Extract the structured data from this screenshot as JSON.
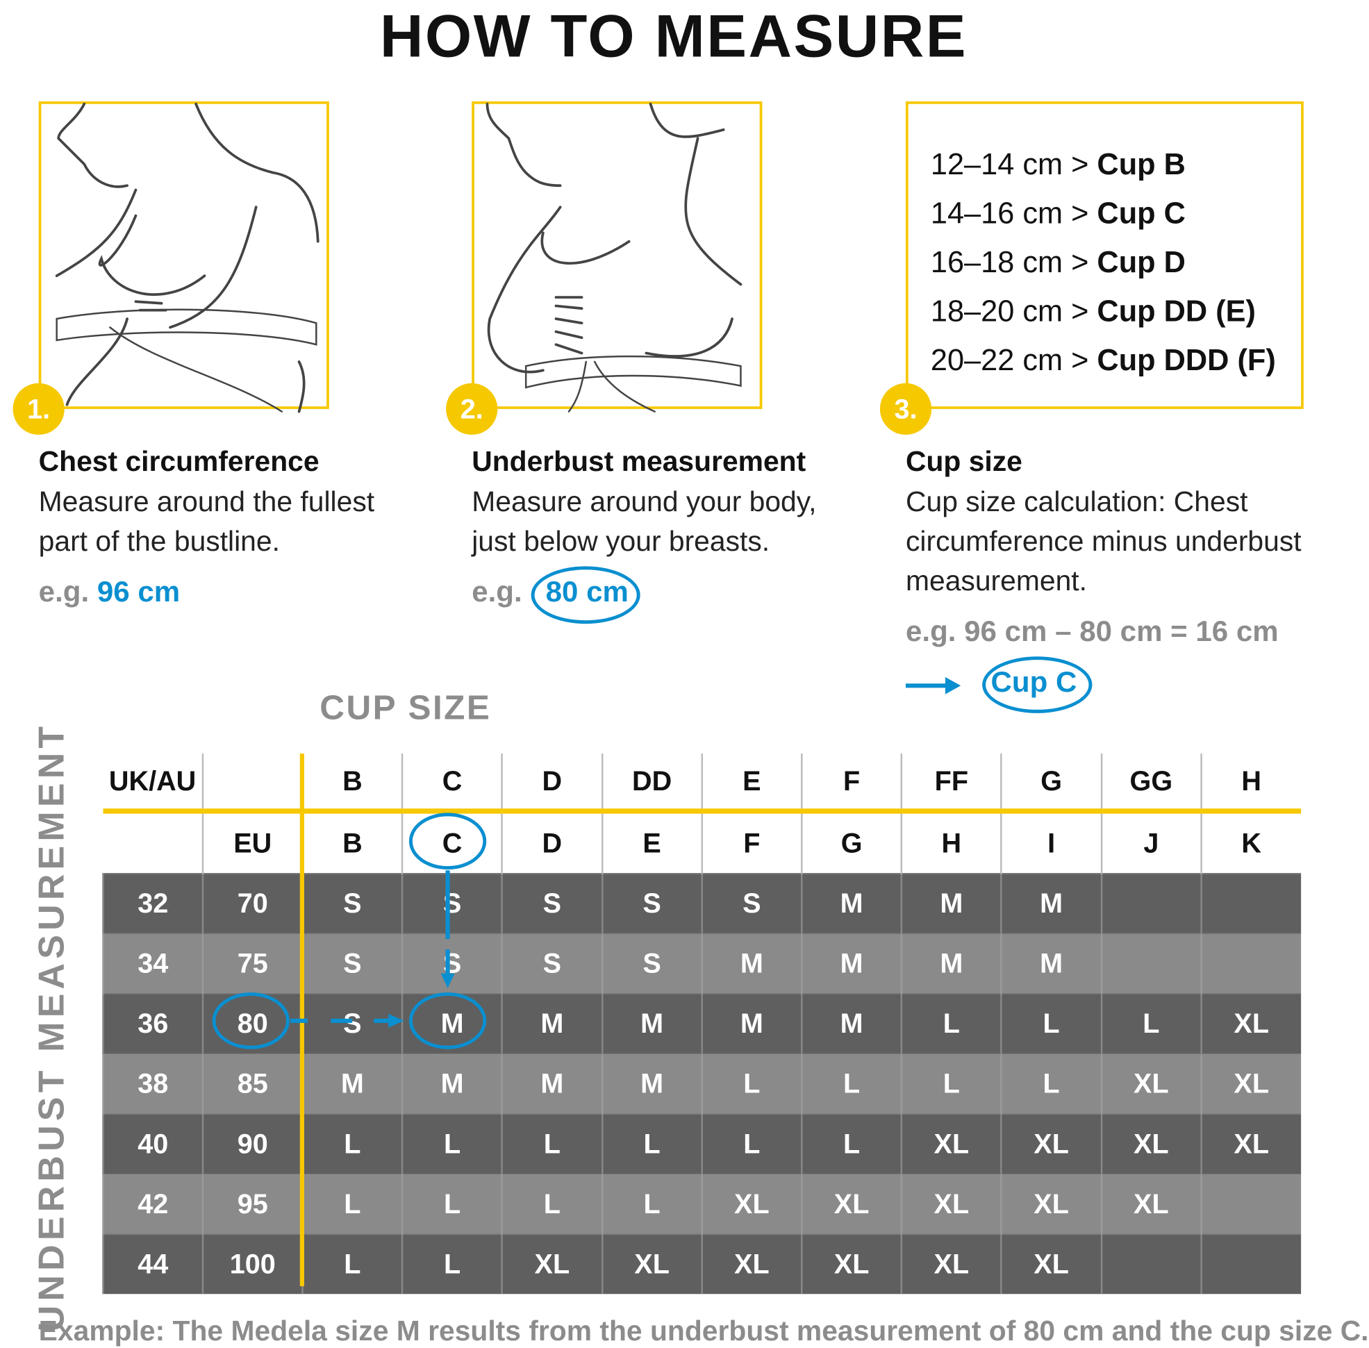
{
  "title": "HOW TO MEASURE",
  "colors": {
    "accent_yellow": "#f6c800",
    "highlight_blue": "#0a8fd0",
    "dark_row": "#5f5f5f",
    "light_row": "#8a8a8a",
    "label_grey": "#8c8c8c"
  },
  "steps": [
    {
      "number": "1.",
      "heading": "Chest circumference",
      "text_line1": "Measure around the fullest",
      "text_line2": "part of the bustline.",
      "eg_label": "e.g.",
      "eg_value": "96 cm"
    },
    {
      "number": "2.",
      "heading": "Underbust measurement",
      "text_line1": "Measure around your body,",
      "text_line2": "just below your breasts.",
      "eg_label": "e.g.",
      "eg_value": "80 cm"
    },
    {
      "number": "3.",
      "heading": "Cup size",
      "text_line1": "Cup size calculation: Chest",
      "text_line2": "circumference minus underbust",
      "text_line3": "measurement.",
      "eg_text": "e.g. 96 cm – 80 cm = 16 cm",
      "result": "Cup C",
      "arrow_icon": "arrow-right-icon"
    }
  ],
  "cup_ranges": [
    {
      "range": "12–14 cm >",
      "cup": "Cup B"
    },
    {
      "range": "14–16 cm >",
      "cup": "Cup C"
    },
    {
      "range": "16–18 cm >",
      "cup": "Cup D"
    },
    {
      "range": "18–20 cm >",
      "cup": "Cup DD (E)"
    },
    {
      "range": "20–22 cm >",
      "cup": "Cup DDD (F)"
    }
  ],
  "table": {
    "cup_size_label": "CUP SIZE",
    "underbust_label": "UNDERBUST MEASUREMENT",
    "header_uk": [
      "UK/AU",
      "",
      "B",
      "C",
      "D",
      "DD",
      "E",
      "F",
      "FF",
      "G",
      "GG",
      "H"
    ],
    "header_eu": [
      "",
      "EU",
      "B",
      "C",
      "D",
      "E",
      "F",
      "G",
      "H",
      "I",
      "J",
      "K"
    ],
    "rows": [
      [
        "32",
        "70",
        "S",
        "S",
        "S",
        "S",
        "S",
        "M",
        "M",
        "M",
        "",
        ""
      ],
      [
        "34",
        "75",
        "S",
        "S",
        "S",
        "S",
        "M",
        "M",
        "M",
        "M",
        "",
        ""
      ],
      [
        "36",
        "80",
        "S",
        "M",
        "M",
        "M",
        "M",
        "M",
        "L",
        "L",
        "L",
        "XL"
      ],
      [
        "38",
        "85",
        "M",
        "M",
        "M",
        "M",
        "L",
        "L",
        "L",
        "L",
        "XL",
        "XL"
      ],
      [
        "40",
        "90",
        "L",
        "L",
        "L",
        "L",
        "L",
        "L",
        "XL",
        "XL",
        "XL",
        "XL"
      ],
      [
        "42",
        "95",
        "L",
        "L",
        "L",
        "L",
        "XL",
        "XL",
        "XL",
        "XL",
        "XL",
        ""
      ],
      [
        "44",
        "100",
        "L",
        "L",
        "XL",
        "XL",
        "XL",
        "XL",
        "XL",
        "XL",
        "",
        ""
      ]
    ],
    "highlight": {
      "eu_underbust": "80",
      "eu_cup": "C",
      "result_size": "M"
    }
  },
  "footer": "Example: The Medela size M results from the underbust measurement of 80 cm and the cup size C."
}
